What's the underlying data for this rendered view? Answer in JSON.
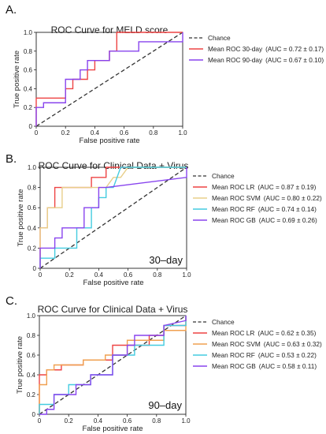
{
  "chart_data": [
    {
      "panel": "A.",
      "type": "line",
      "title": "ROC Curve for MELD score",
      "xlabel": "False positive rate",
      "ylabel": "True positive rate",
      "xlim": [
        0,
        1
      ],
      "ylim": [
        0,
        1
      ],
      "x_ticks": [
        "0",
        "0.2",
        "0.4",
        "0.6",
        "0.8",
        "1.0"
      ],
      "y_ticks": [
        "0",
        "0.2",
        "0.4",
        "0.6",
        "0.8",
        "1.0"
      ],
      "grid": false,
      "legend_position": "right",
      "annotation": "",
      "reference": {
        "name": "Chance",
        "color": "#333333",
        "dashed": true,
        "points": [
          [
            0,
            0
          ],
          [
            1,
            1
          ]
        ]
      },
      "series": [
        {
          "name": "Mean ROC 30-day",
          "auc": "(AUC = 0.72 ± 0.17)",
          "color": "#ee4444",
          "points": [
            [
              0,
              0
            ],
            [
              0,
              0.3
            ],
            [
              0.2,
              0.3
            ],
            [
              0.2,
              0.4
            ],
            [
              0.25,
              0.4
            ],
            [
              0.25,
              0.5
            ],
            [
              0.35,
              0.5
            ],
            [
              0.35,
              0.6
            ],
            [
              0.4,
              0.6
            ],
            [
              0.4,
              0.7
            ],
            [
              0.5,
              0.7
            ],
            [
              0.5,
              0.8
            ],
            [
              0.55,
              0.8
            ],
            [
              0.55,
              1.0
            ],
            [
              1,
              1
            ]
          ]
        },
        {
          "name": "Mean ROC 90-day",
          "auc": "(AUC = 0.67 ± 0.10)",
          "color": "#8844ee",
          "points": [
            [
              0,
              0
            ],
            [
              0,
              0.2
            ],
            [
              0.05,
              0.2
            ],
            [
              0.05,
              0.25
            ],
            [
              0.2,
              0.25
            ],
            [
              0.2,
              0.5
            ],
            [
              0.3,
              0.5
            ],
            [
              0.3,
              0.6
            ],
            [
              0.35,
              0.6
            ],
            [
              0.35,
              0.7
            ],
            [
              0.5,
              0.7
            ],
            [
              0.5,
              0.8
            ],
            [
              0.7,
              0.8
            ],
            [
              0.7,
              0.9
            ],
            [
              1,
              0.9
            ],
            [
              1,
              1
            ]
          ]
        }
      ]
    },
    {
      "panel": "B.",
      "type": "line",
      "title": "ROC Curve for Clinical Data + Virus",
      "xlabel": "False positive rate",
      "ylabel": "True positive rate",
      "xlim": [
        0,
        1
      ],
      "ylim": [
        0,
        1
      ],
      "x_ticks": [
        "0",
        "0.2",
        "0.4",
        "0.6",
        "0.8",
        "1.0"
      ],
      "y_ticks": [
        "0",
        "0.2",
        "0.4",
        "0.6",
        "0.8",
        "1.0"
      ],
      "grid": false,
      "legend_position": "right",
      "annotation": "30–day",
      "reference": {
        "name": "Chance",
        "color": "#333333",
        "dashed": true,
        "points": [
          [
            0,
            0
          ],
          [
            1,
            1
          ]
        ]
      },
      "series": [
        {
          "name": "Mean ROC LR",
          "auc": "(AUC = 0.87 ± 0.19)",
          "color": "#ee4444",
          "points": [
            [
              0,
              0
            ],
            [
              0,
              0.4
            ],
            [
              0.05,
              0.4
            ],
            [
              0.05,
              0.6
            ],
            [
              0.1,
              0.6
            ],
            [
              0.1,
              0.8
            ],
            [
              0.35,
              0.8
            ],
            [
              0.35,
              0.9
            ],
            [
              0.45,
              0.9
            ],
            [
              0.45,
              1.0
            ],
            [
              1,
              1
            ]
          ]
        },
        {
          "name": "Mean ROC SVM",
          "auc": "(AUC = 0.80 ± 0.22)",
          "color": "#e8cf8a",
          "points": [
            [
              0,
              0
            ],
            [
              0,
              0.4
            ],
            [
              0.05,
              0.4
            ],
            [
              0.05,
              0.6
            ],
            [
              0.15,
              0.6
            ],
            [
              0.15,
              0.8
            ],
            [
              0.45,
              0.8
            ],
            [
              0.5,
              0.9
            ],
            [
              0.55,
              0.9
            ],
            [
              0.6,
              1.0
            ],
            [
              1,
              1
            ]
          ]
        },
        {
          "name": "Mean ROC RF",
          "auc": "(AUC = 0.74 ± 0.14)",
          "color": "#44cce0",
          "points": [
            [
              0,
              0
            ],
            [
              0,
              0.1
            ],
            [
              0.1,
              0.1
            ],
            [
              0.1,
              0.2
            ],
            [
              0.25,
              0.2
            ],
            [
              0.25,
              0.4
            ],
            [
              0.35,
              0.4
            ],
            [
              0.35,
              0.6
            ],
            [
              0.4,
              0.6
            ],
            [
              0.4,
              0.7
            ],
            [
              0.45,
              0.7
            ],
            [
              0.45,
              0.8
            ],
            [
              0.5,
              0.8
            ],
            [
              0.55,
              1.0
            ],
            [
              1,
              1
            ]
          ]
        },
        {
          "name": "Mean ROC GB",
          "auc": "(AUC = 0.69 ± 0.26)",
          "color": "#8844ee",
          "points": [
            [
              0,
              0
            ],
            [
              0,
              0.2
            ],
            [
              0.1,
              0.2
            ],
            [
              0.1,
              0.3
            ],
            [
              0.15,
              0.3
            ],
            [
              0.15,
              0.4
            ],
            [
              0.3,
              0.4
            ],
            [
              0.3,
              0.6
            ],
            [
              0.4,
              0.6
            ],
            [
              0.4,
              0.8
            ],
            [
              0.45,
              0.8
            ],
            [
              1,
              0.9
            ],
            [
              1,
              1
            ]
          ]
        }
      ]
    },
    {
      "panel": "C.",
      "type": "line",
      "title": "ROC Curve for Clinical Data + Virus",
      "xlabel": "False positive rate",
      "ylabel": "True positive rate",
      "xlim": [
        0,
        1
      ],
      "ylim": [
        0,
        1
      ],
      "x_ticks": [
        "0",
        "0.2",
        "0.4",
        "0.6",
        "0.8",
        "1.0"
      ],
      "y_ticks": [
        "0",
        "0.2",
        "0.4",
        "0.6",
        "0.8",
        "1.0"
      ],
      "grid": false,
      "legend_position": "right",
      "annotation": "90–day",
      "reference": {
        "name": "Chance",
        "color": "#333333",
        "dashed": true,
        "points": [
          [
            0,
            0
          ],
          [
            1,
            1
          ]
        ]
      },
      "series": [
        {
          "name": "Mean ROC LR",
          "auc": "(AUC = 0.62 ± 0.35)",
          "color": "#ee4444",
          "points": [
            [
              0,
              0
            ],
            [
              0,
              0.4
            ],
            [
              0.05,
              0.4
            ],
            [
              0.05,
              0.45
            ],
            [
              0.15,
              0.45
            ],
            [
              0.15,
              0.5
            ],
            [
              0.3,
              0.5
            ],
            [
              0.3,
              0.55
            ],
            [
              0.5,
              0.55
            ],
            [
              0.5,
              0.7
            ],
            [
              0.75,
              0.7
            ],
            [
              0.75,
              0.8
            ],
            [
              0.85,
              0.8
            ],
            [
              0.85,
              0.9
            ],
            [
              1,
              0.9
            ],
            [
              1,
              1
            ]
          ]
        },
        {
          "name": "Mean ROC SVM",
          "auc": "(AUC = 0.63 ± 0.32)",
          "color": "#f0a050",
          "points": [
            [
              0,
              0
            ],
            [
              0,
              0.3
            ],
            [
              0.05,
              0.3
            ],
            [
              0.05,
              0.45
            ],
            [
              0.1,
              0.45
            ],
            [
              0.1,
              0.5
            ],
            [
              0.3,
              0.5
            ],
            [
              0.3,
              0.55
            ],
            [
              0.45,
              0.55
            ],
            [
              0.45,
              0.6
            ],
            [
              0.6,
              0.6
            ],
            [
              0.6,
              0.75
            ],
            [
              0.85,
              0.75
            ],
            [
              0.85,
              0.85
            ],
            [
              1,
              0.85
            ],
            [
              1,
              1
            ]
          ]
        },
        {
          "name": "Mean ROC RF",
          "auc": "(AUC = 0.53 ± 0.22)",
          "color": "#44cce0",
          "points": [
            [
              0,
              0
            ],
            [
              0,
              0.1
            ],
            [
              0.1,
              0.1
            ],
            [
              0.1,
              0.2
            ],
            [
              0.2,
              0.2
            ],
            [
              0.2,
              0.3
            ],
            [
              0.35,
              0.3
            ],
            [
              0.35,
              0.4
            ],
            [
              0.5,
              0.4
            ],
            [
              0.5,
              0.6
            ],
            [
              0.65,
              0.6
            ],
            [
              0.65,
              0.7
            ],
            [
              0.85,
              0.7
            ],
            [
              0.85,
              0.9
            ],
            [
              1,
              0.9
            ],
            [
              1,
              1
            ]
          ]
        },
        {
          "name": "Mean ROC GB",
          "auc": "(AUC = 0.58 ± 0.11)",
          "color": "#8844ee",
          "points": [
            [
              0,
              0
            ],
            [
              0.05,
              0
            ],
            [
              0.05,
              0.05
            ],
            [
              0.1,
              0.05
            ],
            [
              0.1,
              0.2
            ],
            [
              0.25,
              0.2
            ],
            [
              0.25,
              0.3
            ],
            [
              0.35,
              0.3
            ],
            [
              0.35,
              0.4
            ],
            [
              0.5,
              0.4
            ],
            [
              0.5,
              0.6
            ],
            [
              0.6,
              0.6
            ],
            [
              0.6,
              0.7
            ],
            [
              0.65,
              0.7
            ],
            [
              0.65,
              0.8
            ],
            [
              0.85,
              0.8
            ],
            [
              0.85,
              0.9
            ],
            [
              1,
              0.95
            ],
            [
              1,
              1
            ]
          ]
        }
      ]
    }
  ]
}
